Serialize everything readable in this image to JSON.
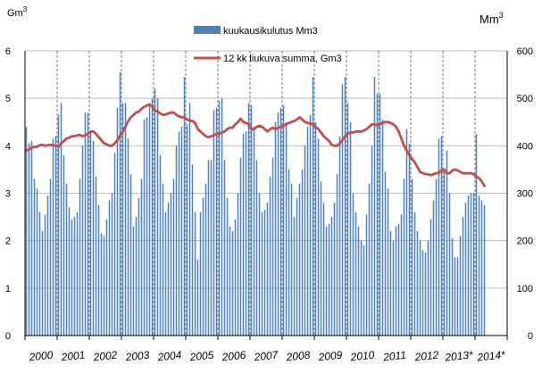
{
  "chart_data": {
    "type": "bar",
    "left_unit": "Gm",
    "left_unit_sup": "3",
    "right_unit": "Mm",
    "right_unit_sup": "3",
    "left_axis": {
      "min": 0,
      "max": 6,
      "ticks": [
        "0",
        "1",
        "2",
        "3",
        "4",
        "5",
        "6"
      ]
    },
    "right_axis": {
      "min": 0,
      "max": 600,
      "ticks": [
        "0",
        "100",
        "200",
        "300",
        "400",
        "500",
        "600"
      ]
    },
    "years": [
      "2000",
      "2001",
      "2002",
      "2003",
      "2004",
      "2005",
      "2006",
      "2007",
      "2008",
      "2009",
      "2010",
      "2011",
      "2012",
      "2013*",
      "2014*"
    ],
    "series": [
      {
        "name": "kuukausikulutus Mm3",
        "axis": "right",
        "color": "#4f81bd",
        "monthly_values": [
          440,
          405,
          410,
          330,
          310,
          260,
          220,
          255,
          295,
          330,
          415,
          420,
          465,
          490,
          380,
          320,
          270,
          245,
          250,
          260,
          330,
          400,
          470,
          470,
          430,
          410,
          335,
          275,
          215,
          210,
          245,
          285,
          300,
          385,
          480,
          555,
          490,
          490,
          415,
          340,
          230,
          250,
          290,
          330,
          455,
          460,
          490,
          500,
          520,
          500,
          380,
          320,
          260,
          280,
          300,
          330,
          400,
          430,
          440,
          545,
          445,
          490,
          360,
          260,
          160,
          260,
          290,
          320,
          370,
          370,
          475,
          480,
          495,
          500,
          370,
          290,
          230,
          220,
          245,
          300,
          375,
          425,
          430,
          490,
          485,
          440,
          370,
          300,
          260,
          265,
          280,
          335,
          375,
          450,
          470,
          480,
          485,
          450,
          350,
          320,
          250,
          290,
          320,
          350,
          400,
          440,
          465,
          545,
          450,
          415,
          325,
          280,
          230,
          235,
          250,
          280,
          340,
          420,
          530,
          545,
          490,
          450,
          300,
          260,
          230,
          200,
          190,
          255,
          320,
          400,
          545,
          510,
          510,
          455,
          345,
          310,
          220,
          200,
          230,
          235,
          255,
          330,
          435,
          405,
          330,
          260,
          220,
          200,
          180,
          175,
          200,
          245,
          285,
          330,
          415,
          420,
          350,
          390,
          300,
          205,
          165,
          165,
          210,
          250,
          280,
          295,
          300,
          300,
          425,
          295,
          285,
          275
        ]
      },
      {
        "name": "12 kk liukuva summa,  Gm3",
        "axis": "left",
        "color": "#c0504d",
        "monthly_values": [
          3.9,
          3.92,
          3.96,
          3.97,
          3.98,
          4.01,
          4.02,
          4.0,
          4.01,
          4.02,
          4.01,
          4.0,
          3.98,
          4.05,
          4.1,
          4.15,
          4.17,
          4.2,
          4.2,
          4.22,
          4.23,
          4.2,
          4.22,
          4.25,
          4.3,
          4.3,
          4.25,
          4.18,
          4.12,
          4.05,
          4.03,
          4.0,
          4.0,
          4.05,
          4.12,
          4.22,
          4.3,
          4.4,
          4.52,
          4.6,
          4.65,
          4.7,
          4.72,
          4.78,
          4.82,
          4.85,
          4.87,
          4.82,
          4.74,
          4.72,
          4.68,
          4.65,
          4.66,
          4.68,
          4.7,
          4.7,
          4.65,
          4.62,
          4.6,
          4.6,
          4.55,
          4.53,
          4.52,
          4.48,
          4.35,
          4.3,
          4.25,
          4.2,
          4.18,
          4.2,
          4.22,
          4.25,
          4.25,
          4.28,
          4.3,
          4.35,
          4.38,
          4.38,
          4.45,
          4.5,
          4.57,
          4.5,
          4.48,
          4.45,
          4.35,
          4.35,
          4.4,
          4.42,
          4.4,
          4.35,
          4.3,
          4.35,
          4.38,
          4.35,
          4.38,
          4.4,
          4.42,
          4.45,
          4.48,
          4.5,
          4.52,
          4.55,
          4.6,
          4.55,
          4.5,
          4.48,
          4.47,
          4.45,
          4.4,
          4.35,
          4.28,
          4.2,
          4.15,
          4.1,
          4.02,
          4.0,
          4.0,
          4.05,
          4.12,
          4.2,
          4.25,
          4.28,
          4.28,
          4.3,
          4.3,
          4.3,
          4.32,
          4.35,
          4.4,
          4.45,
          4.45,
          4.43,
          4.45,
          4.48,
          4.5,
          4.5,
          4.48,
          4.45,
          4.4,
          4.3,
          4.15,
          4.0,
          3.9,
          3.8,
          3.72,
          3.65,
          3.55,
          3.45,
          3.42,
          3.4,
          3.4,
          3.38,
          3.4,
          3.42,
          3.43,
          3.48,
          3.5,
          3.42,
          3.42,
          3.48,
          3.5,
          3.48,
          3.45,
          3.42,
          3.42,
          3.42,
          3.42,
          3.4,
          3.35,
          3.32,
          3.25,
          3.15
        ]
      }
    ],
    "grid": {
      "horizontal": true,
      "vertical_year_dividers": "dashed"
    },
    "legend": "top-center"
  }
}
